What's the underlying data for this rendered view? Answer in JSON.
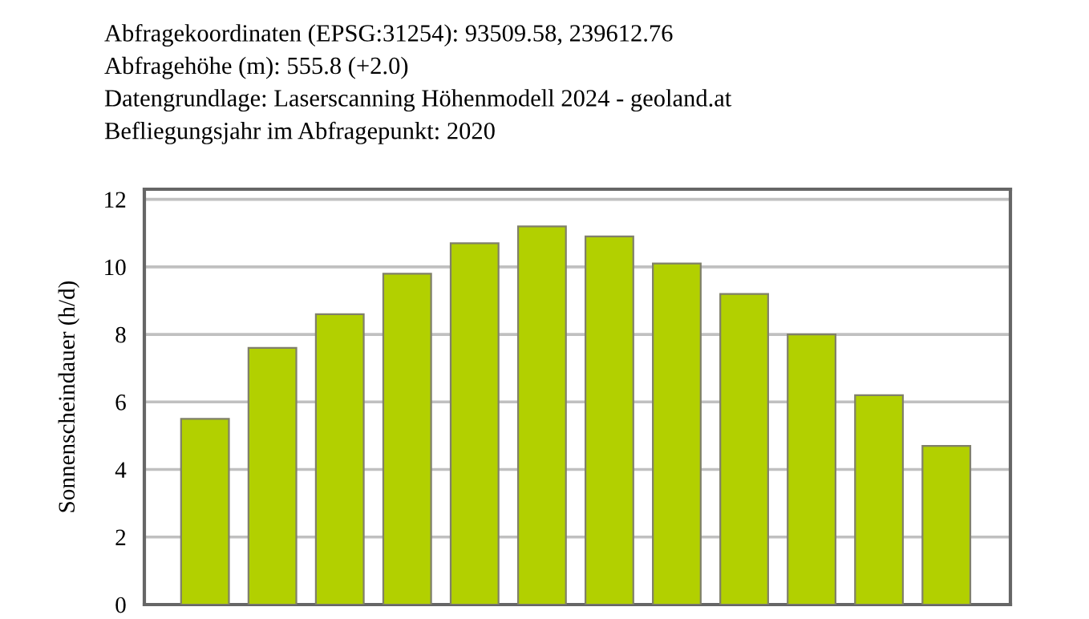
{
  "chart_data": {
    "type": "bar",
    "annotations": [
      "Abfragekoordinaten (EPSG:31254): 93509.58, 239612.76",
      "Abfragehöhe (m): 555.8 (+2.0)",
      "Datengrundlage: Laserscanning Höhenmodell 2024 - geoland.at",
      "Befliegungsjahr im Abfragepunkt: 2020"
    ],
    "ylabel": "Sonnenscheindauer (h/d)",
    "categories": [
      null,
      null,
      null,
      null,
      null,
      null,
      null,
      null,
      null,
      null,
      null,
      null
    ],
    "values": [
      5.5,
      7.6,
      8.6,
      9.8,
      10.7,
      11.2,
      10.9,
      10.1,
      9.2,
      8.0,
      6.2,
      4.7
    ],
    "color": "#b2d000",
    "ylim": [
      0,
      12.3
    ],
    "yticks": [
      0,
      2,
      4,
      6,
      8,
      10,
      12
    ],
    "grid": "y",
    "tick_labels": "y"
  }
}
